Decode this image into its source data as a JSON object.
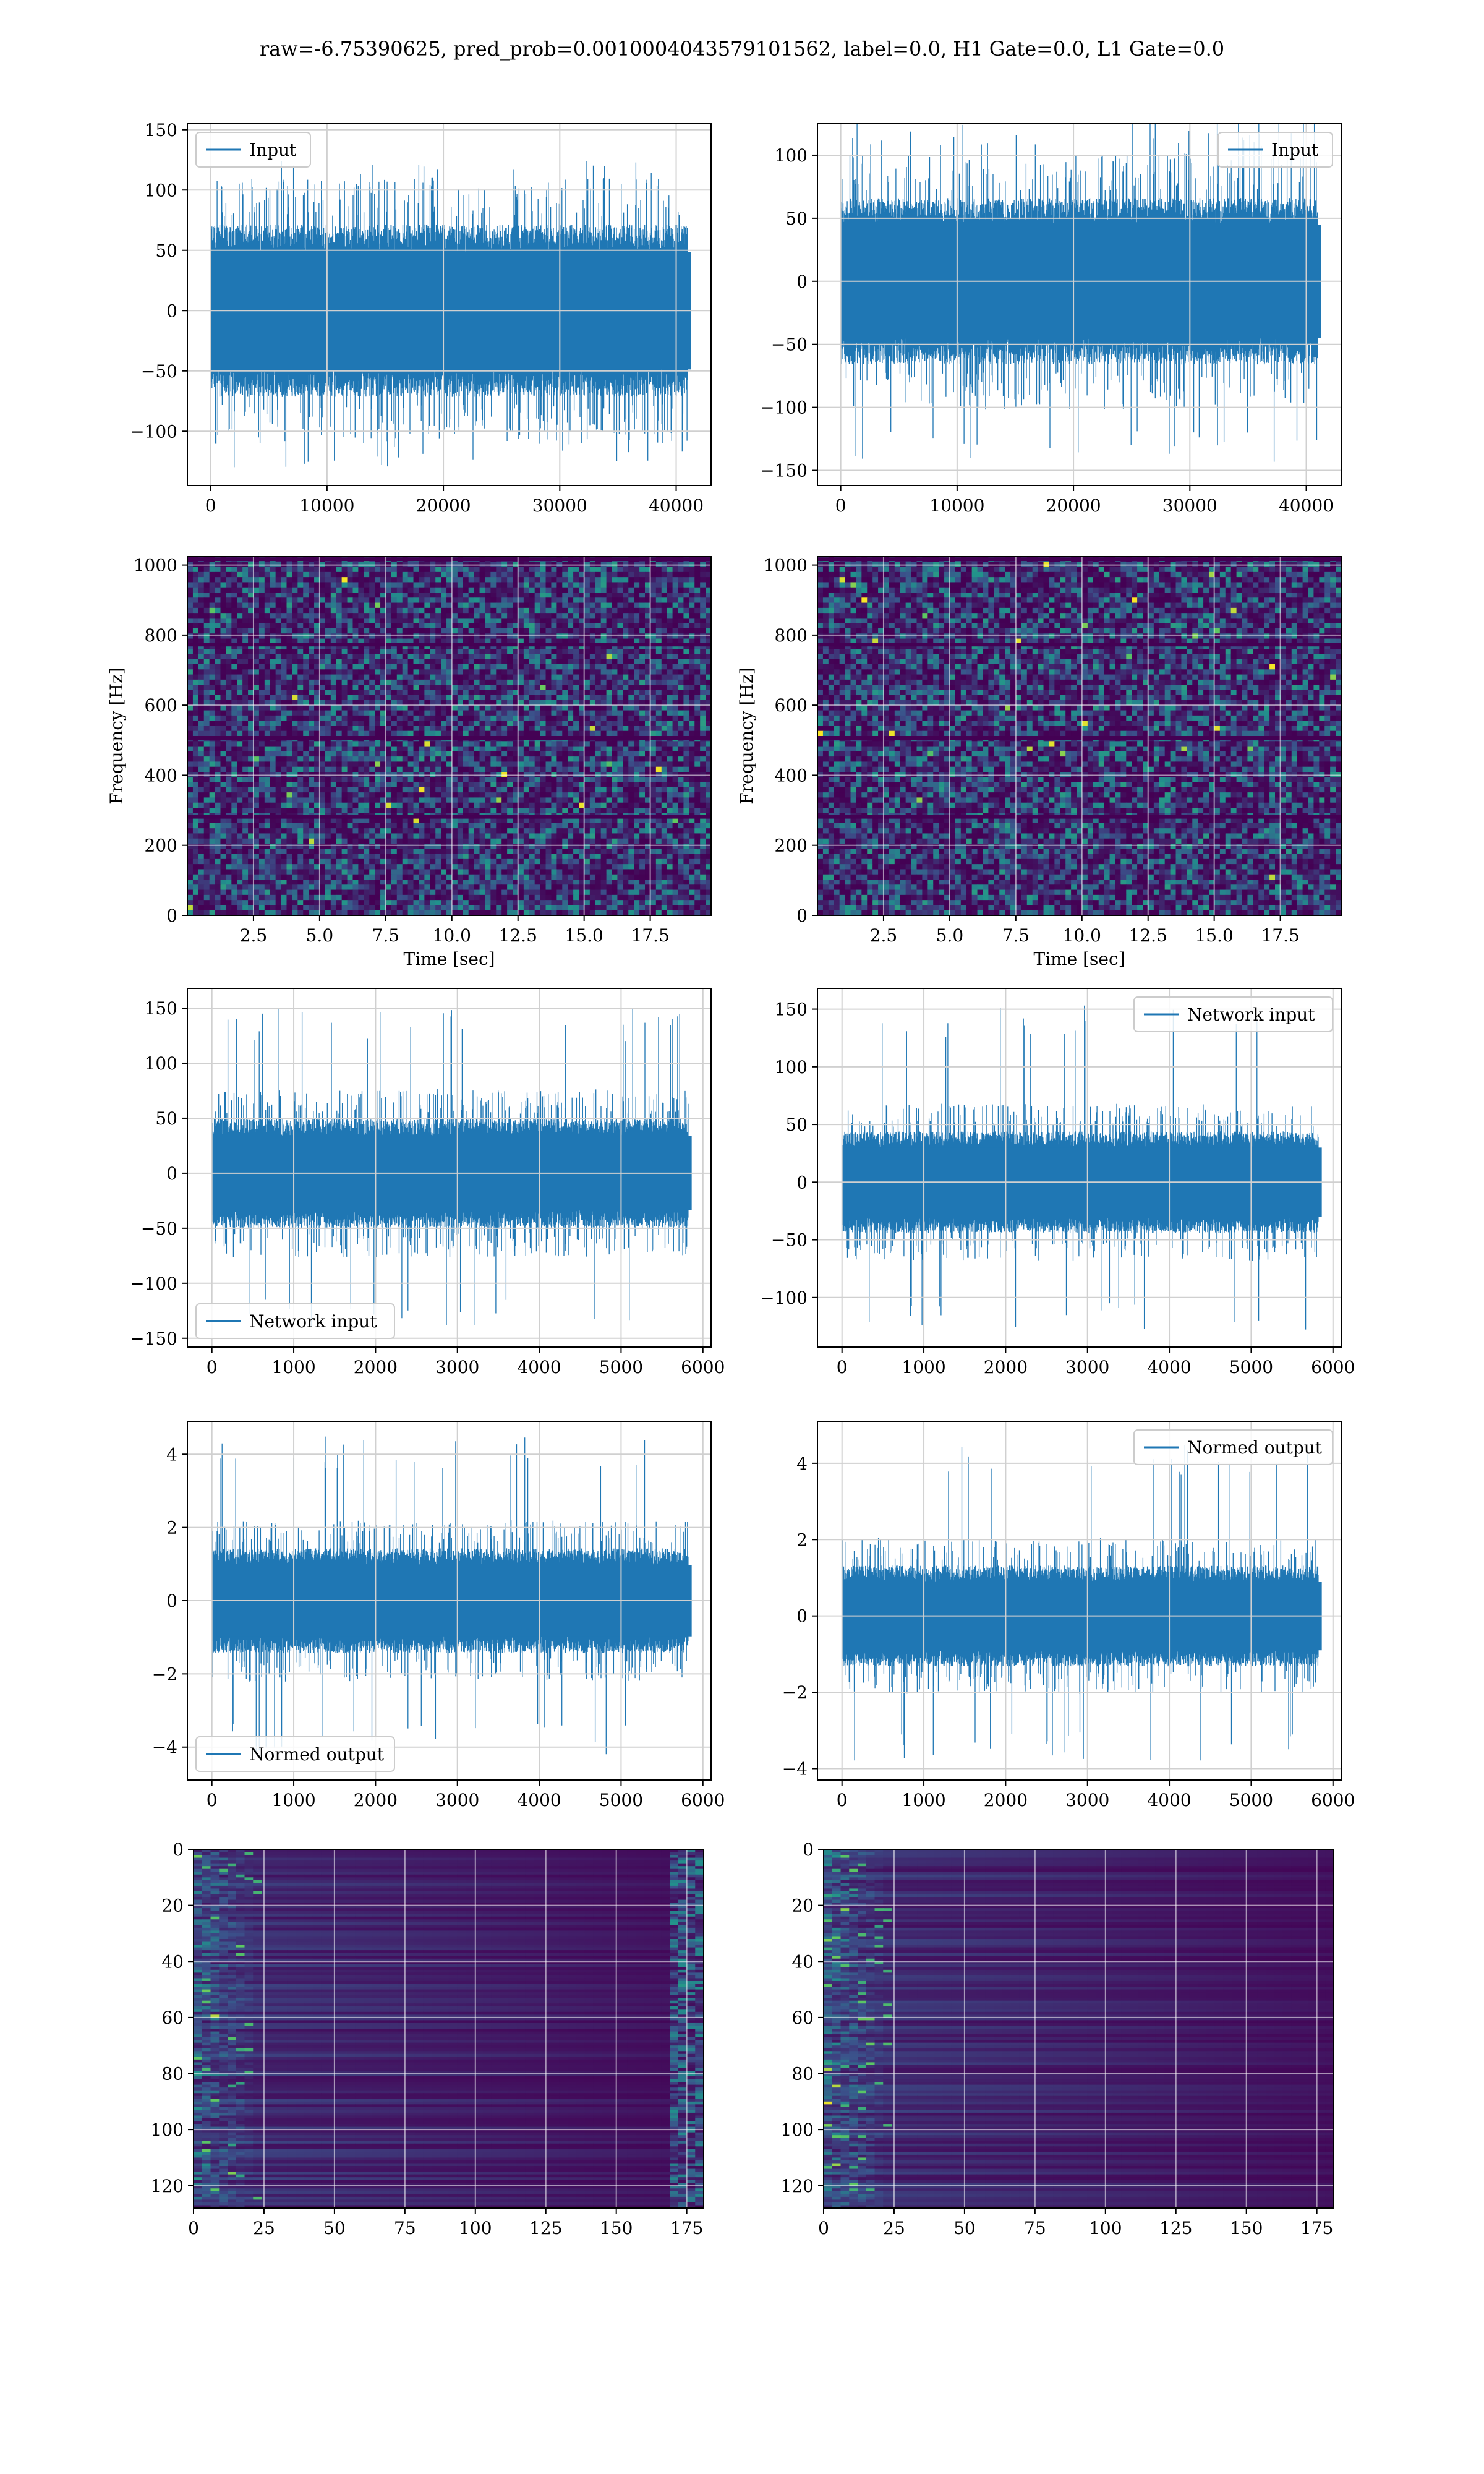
{
  "figure": {
    "suptitle": "raw=-6.75390625, pred_prob=0.0010004043579101562, label=0.0, H1 Gate=0.0, L1 Gate=0.0"
  },
  "colors": {
    "line": "#1f77b4",
    "grid": "#d0d0d0",
    "frame": "#000000",
    "viridis_low": "#440154",
    "viridis_mid": "#21918c",
    "viridis_high": "#fde725"
  },
  "chart_data": [
    {
      "id": "input-h1",
      "type": "line",
      "title": "",
      "xlabel": "",
      "ylabel": "",
      "series": [
        {
          "name": "Input",
          "x_range": [
            0,
            40960
          ],
          "band": [
            -65,
            65
          ],
          "spikes": [
            -130,
            125
          ]
        }
      ],
      "xlim": [
        -2000,
        43000
      ],
      "ylim": [
        -145,
        155
      ],
      "xticks": [
        0,
        10000,
        20000,
        30000,
        40000
      ],
      "xtick_labels": [
        "0",
        "10000",
        "20000",
        "30000",
        "40000"
      ],
      "yticks": [
        -100,
        -50,
        0,
        50,
        100,
        150
      ],
      "ytick_labels": [
        "−100",
        "−50",
        "0",
        "50",
        "100",
        "150"
      ],
      "legend": "upper-left",
      "grid": true
    },
    {
      "id": "input-l1",
      "type": "line",
      "title": "",
      "xlabel": "",
      "ylabel": "",
      "series": [
        {
          "name": "Input",
          "x_range": [
            0,
            40960
          ],
          "band": [
            -60,
            60
          ],
          "spikes": [
            -148,
            130
          ]
        }
      ],
      "xlim": [
        -2000,
        43000
      ],
      "ylim": [
        -162,
        125
      ],
      "xticks": [
        0,
        10000,
        20000,
        30000,
        40000
      ],
      "xtick_labels": [
        "0",
        "10000",
        "20000",
        "30000",
        "40000"
      ],
      "yticks": [
        -150,
        -100,
        -50,
        0,
        50,
        100
      ],
      "ytick_labels": [
        "−150",
        "−100",
        "−50",
        "0",
        "50",
        "100"
      ],
      "legend": "upper-right",
      "grid": true
    },
    {
      "id": "spectrogram-h1",
      "type": "heatmap",
      "title": "",
      "xlabel": "Time [sec]",
      "ylabel": "Frequency [Hz]",
      "xlim": [
        0,
        19.8
      ],
      "ylim": [
        0,
        1024
      ],
      "xticks": [
        2.5,
        5.0,
        7.5,
        10.0,
        12.5,
        15.0,
        17.5
      ],
      "xtick_labels": [
        "2.5",
        "5.0",
        "7.5",
        "10.0",
        "12.5",
        "15.0",
        "17.5"
      ],
      "yticks": [
        0,
        200,
        400,
        600,
        800,
        1000
      ],
      "ytick_labels": [
        "0",
        "200",
        "400",
        "600",
        "800",
        "1000"
      ],
      "colormap": "viridis",
      "grid": true
    },
    {
      "id": "spectrogram-l1",
      "type": "heatmap",
      "title": "",
      "xlabel": "Time [sec]",
      "ylabel": "Frequency [Hz]",
      "xlim": [
        0,
        19.8
      ],
      "ylim": [
        0,
        1024
      ],
      "xticks": [
        2.5,
        5.0,
        7.5,
        10.0,
        12.5,
        15.0,
        17.5
      ],
      "xtick_labels": [
        "2.5",
        "5.0",
        "7.5",
        "10.0",
        "12.5",
        "15.0",
        "17.5"
      ],
      "yticks": [
        0,
        200,
        400,
        600,
        800,
        1000
      ],
      "ytick_labels": [
        "0",
        "200",
        "400",
        "600",
        "800",
        "1000"
      ],
      "colormap": "viridis",
      "grid": true
    },
    {
      "id": "network-input-h1",
      "type": "line",
      "title": "",
      "xlabel": "",
      "ylabel": "",
      "series": [
        {
          "name": "Network input",
          "x_range": [
            0,
            5820
          ],
          "band": [
            -45,
            45
          ],
          "spikes": [
            -140,
            150
          ]
        }
      ],
      "xlim": [
        -300,
        6100
      ],
      "ylim": [
        -158,
        168
      ],
      "xticks": [
        0,
        1000,
        2000,
        3000,
        4000,
        5000,
        6000
      ],
      "xtick_labels": [
        "0",
        "1000",
        "2000",
        "3000",
        "4000",
        "5000",
        "6000"
      ],
      "yticks": [
        -150,
        -100,
        -50,
        0,
        50,
        100,
        150
      ],
      "ytick_labels": [
        "−150",
        "−100",
        "−50",
        "0",
        "50",
        "100",
        "150"
      ],
      "legend": "lower-left",
      "grid": true
    },
    {
      "id": "network-input-l1",
      "type": "line",
      "title": "",
      "xlabel": "",
      "ylabel": "",
      "series": [
        {
          "name": "Network input",
          "x_range": [
            0,
            5820
          ],
          "band": [
            -40,
            40
          ],
          "spikes": [
            -128,
            155
          ]
        }
      ],
      "xlim": [
        -300,
        6100
      ],
      "ylim": [
        -143,
        168
      ],
      "xticks": [
        0,
        1000,
        2000,
        3000,
        4000,
        5000,
        6000
      ],
      "xtick_labels": [
        "0",
        "1000",
        "2000",
        "3000",
        "4000",
        "5000",
        "6000"
      ],
      "yticks": [
        -100,
        -50,
        0,
        50,
        100,
        150
      ],
      "ytick_labels": [
        "−100",
        "−50",
        "0",
        "50",
        "100",
        "150"
      ],
      "legend": "upper-right",
      "grid": true
    },
    {
      "id": "normed-output-h1",
      "type": "line",
      "title": "",
      "xlabel": "",
      "ylabel": "",
      "series": [
        {
          "name": "Normed output",
          "x_range": [
            0,
            5820
          ],
          "band": [
            -1.3,
            1.3
          ],
          "spikes": [
            -4.2,
            4.5
          ]
        }
      ],
      "xlim": [
        -300,
        6100
      ],
      "ylim": [
        -4.9,
        4.9
      ],
      "xticks": [
        0,
        1000,
        2000,
        3000,
        4000,
        5000,
        6000
      ],
      "xtick_labels": [
        "0",
        "1000",
        "2000",
        "3000",
        "4000",
        "5000",
        "6000"
      ],
      "yticks": [
        -4,
        -2,
        0,
        2,
        4
      ],
      "ytick_labels": [
        "−4",
        "−2",
        "0",
        "2",
        "4"
      ],
      "legend": "lower-left",
      "grid": true
    },
    {
      "id": "normed-output-l1",
      "type": "line",
      "title": "",
      "xlabel": "",
      "ylabel": "",
      "series": [
        {
          "name": "Normed output",
          "x_range": [
            0,
            5820
          ],
          "band": [
            -1.2,
            1.2
          ],
          "spikes": [
            -3.8,
            4.6
          ]
        }
      ],
      "xlim": [
        -300,
        6100
      ],
      "ylim": [
        -4.3,
        5.1
      ],
      "xticks": [
        0,
        1000,
        2000,
        3000,
        4000,
        5000,
        6000
      ],
      "xtick_labels": [
        "0",
        "1000",
        "2000",
        "3000",
        "4000",
        "5000",
        "6000"
      ],
      "yticks": [
        -4,
        -2,
        0,
        2,
        4
      ],
      "ytick_labels": [
        "−4",
        "−2",
        "0",
        "2",
        "4"
      ],
      "legend": "upper-right",
      "grid": true
    },
    {
      "id": "feature-map-h1",
      "type": "heatmap",
      "title": "",
      "xlabel": "",
      "ylabel": "",
      "xlim": [
        0,
        181
      ],
      "ylim": [
        128,
        0
      ],
      "xticks": [
        0,
        25,
        50,
        75,
        100,
        125,
        150,
        175
      ],
      "xtick_labels": [
        "0",
        "25",
        "50",
        "75",
        "100",
        "125",
        "150",
        "175"
      ],
      "yticks": [
        0,
        20,
        40,
        60,
        80,
        100,
        120
      ],
      "ytick_labels": [
        "0",
        "20",
        "40",
        "60",
        "80",
        "100",
        "120"
      ],
      "colormap": "viridis",
      "grid": true
    },
    {
      "id": "feature-map-l1",
      "type": "heatmap",
      "title": "",
      "xlabel": "",
      "ylabel": "",
      "xlim": [
        0,
        181
      ],
      "ylim": [
        128,
        0
      ],
      "xticks": [
        0,
        25,
        50,
        75,
        100,
        125,
        150,
        175
      ],
      "xtick_labels": [
        "0",
        "25",
        "50",
        "75",
        "100",
        "125",
        "150",
        "175"
      ],
      "yticks": [
        0,
        20,
        40,
        60,
        80,
        100,
        120
      ],
      "ytick_labels": [
        "0",
        "20",
        "40",
        "60",
        "80",
        "100",
        "120"
      ],
      "colormap": "viridis",
      "grid": true
    }
  ]
}
